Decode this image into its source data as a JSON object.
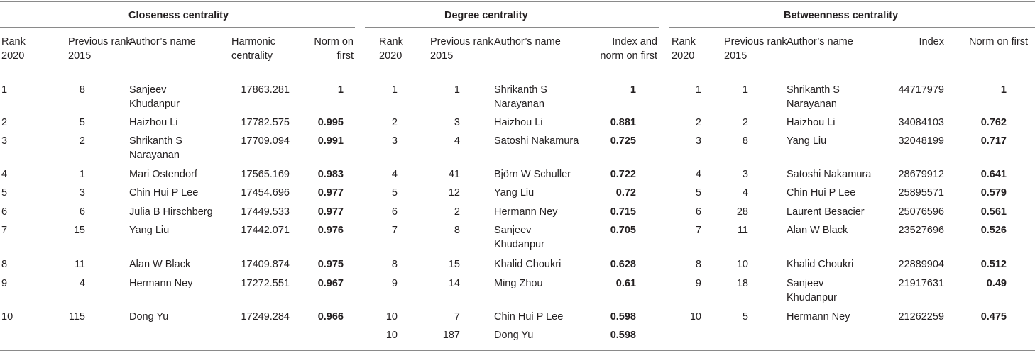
{
  "groups": [
    {
      "title": "Closeness centrality",
      "headers": [
        "Rank 2020",
        "Previous rank 2015",
        "Author’s name",
        "Harmonic centrality",
        "Norm on first"
      ],
      "rows": [
        [
          "1",
          "8",
          "Sanjeev Khudanpur",
          "17863.281",
          "1"
        ],
        [
          "2",
          "5",
          "Haizhou Li",
          "17782.575",
          "0.995"
        ],
        [
          "3",
          "2",
          "Shrikanth S Narayanan",
          "17709.094",
          "0.991"
        ],
        [
          "4",
          "1",
          "Mari Ostendorf",
          "17565.169",
          "0.983"
        ],
        [
          "5",
          "3",
          "Chin Hui P Lee",
          "17454.696",
          "0.977"
        ],
        [
          "6",
          "6",
          "Julia B Hirschberg",
          "17449.533",
          "0.977"
        ],
        [
          "7",
          "15",
          "Yang Liu",
          "17442.071",
          "0.976"
        ],
        [
          "8",
          "11",
          "Alan W Black",
          "17409.874",
          "0.975"
        ],
        [
          "9",
          "4",
          "Hermann Ney",
          "17272.551",
          "0.967"
        ],
        [
          "10",
          "115",
          "Dong Yu",
          "17249.284",
          "0.966"
        ]
      ]
    },
    {
      "title": "Degree centrality",
      "headers": [
        "Rank 2020",
        "Previous rank 2015",
        "Author’s name",
        "Index and norm on first"
      ],
      "rows": [
        [
          "1",
          "1",
          "Shrikanth S Narayanan",
          "1"
        ],
        [
          "2",
          "3",
          "Haizhou Li",
          "0.881"
        ],
        [
          "3",
          "4",
          "Satoshi Nakamura",
          "0.725"
        ],
        [
          "4",
          "41",
          "Björn W Schuller",
          "0.722"
        ],
        [
          "5",
          "12",
          "Yang Liu",
          "0.72"
        ],
        [
          "6",
          "2",
          "Hermann Ney",
          "0.715"
        ],
        [
          "7",
          "8",
          "Sanjeev Khudanpur",
          "0.705"
        ],
        [
          "8",
          "15",
          "Khalid Choukri",
          "0.628"
        ],
        [
          "9",
          "14",
          "Ming Zhou",
          "0.61"
        ],
        [
          "10",
          "7",
          "Chin Hui P Lee",
          "0.598"
        ],
        [
          "10",
          "187",
          "Dong Yu",
          "0.598"
        ]
      ]
    },
    {
      "title": "Betweenness centrality",
      "headers": [
        "Rank 2020",
        "Previous rank 2015",
        "Author’s name",
        "Index",
        "Norm on first"
      ],
      "rows": [
        [
          "1",
          "1",
          "Shrikanth S Narayanan",
          "44717979",
          "1"
        ],
        [
          "2",
          "2",
          "Haizhou Li",
          "34084103",
          "0.762"
        ],
        [
          "3",
          "8",
          "Yang Liu",
          "32048199",
          "0.717"
        ],
        [
          "4",
          "3",
          "Satoshi Nakamura",
          "28679912",
          "0.641"
        ],
        [
          "5",
          "4",
          "Chin Hui P Lee",
          "25895571",
          "0.579"
        ],
        [
          "6",
          "28",
          "Laurent Besacier",
          "25076596",
          "0.561"
        ],
        [
          "7",
          "11",
          "Alan W Black",
          "23527696",
          "0.526"
        ],
        [
          "8",
          "10",
          "Khalid Choukri",
          "22889904",
          "0.512"
        ],
        [
          "9",
          "18",
          "Sanjeev Khudanpur",
          "21917631",
          "0.49"
        ],
        [
          "10",
          "5",
          "Hermann Ney",
          "21262259",
          "0.475"
        ]
      ]
    }
  ]
}
